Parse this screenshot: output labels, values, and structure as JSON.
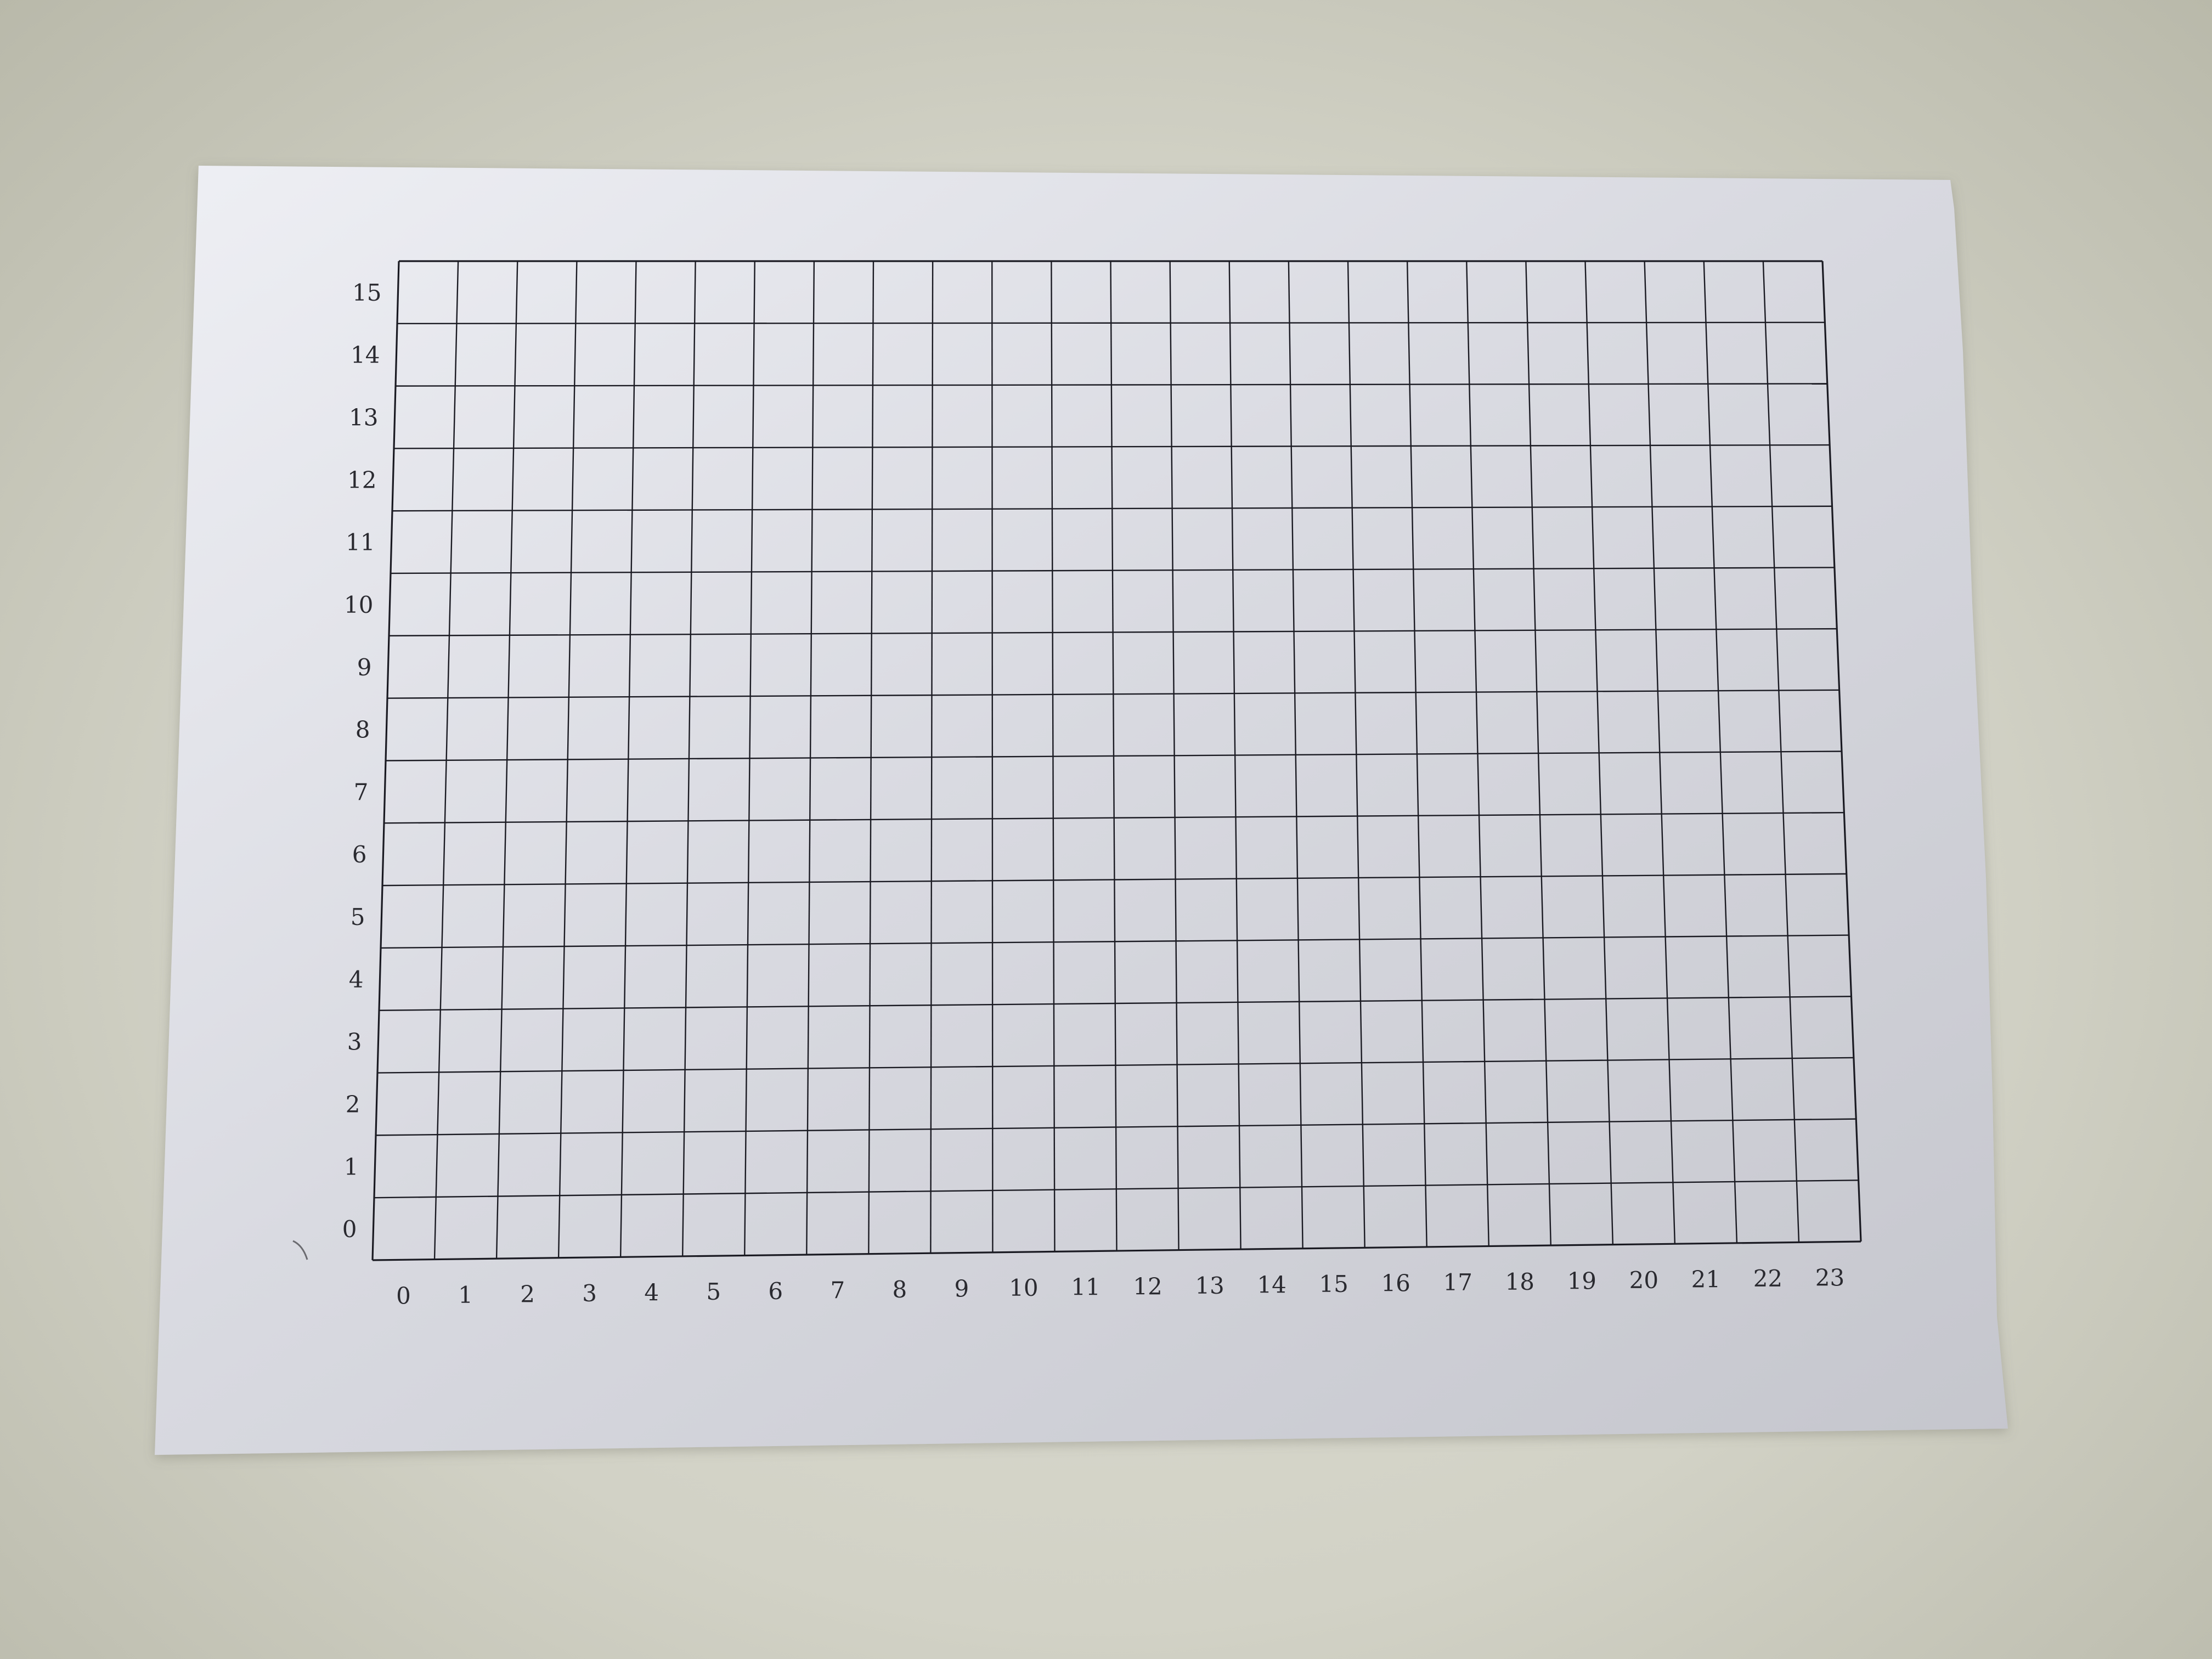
{
  "grid": {
    "x_labels": [
      "0",
      "1",
      "2",
      "3",
      "4",
      "5",
      "6",
      "7",
      "8",
      "9",
      "10",
      "11",
      "12",
      "13",
      "14",
      "15",
      "16",
      "17",
      "18",
      "19",
      "20",
      "21",
      "22",
      "23"
    ],
    "y_labels": [
      "0",
      "1",
      "2",
      "3",
      "4",
      "5",
      "6",
      "7",
      "8",
      "9",
      "10",
      "11",
      "12",
      "13",
      "14",
      "15"
    ]
  },
  "colors": {
    "paper_light": "#ecedf3",
    "paper_dark": "#c9cad1",
    "grid_line": "#1a1a22",
    "label_text": "#2a2a30"
  }
}
